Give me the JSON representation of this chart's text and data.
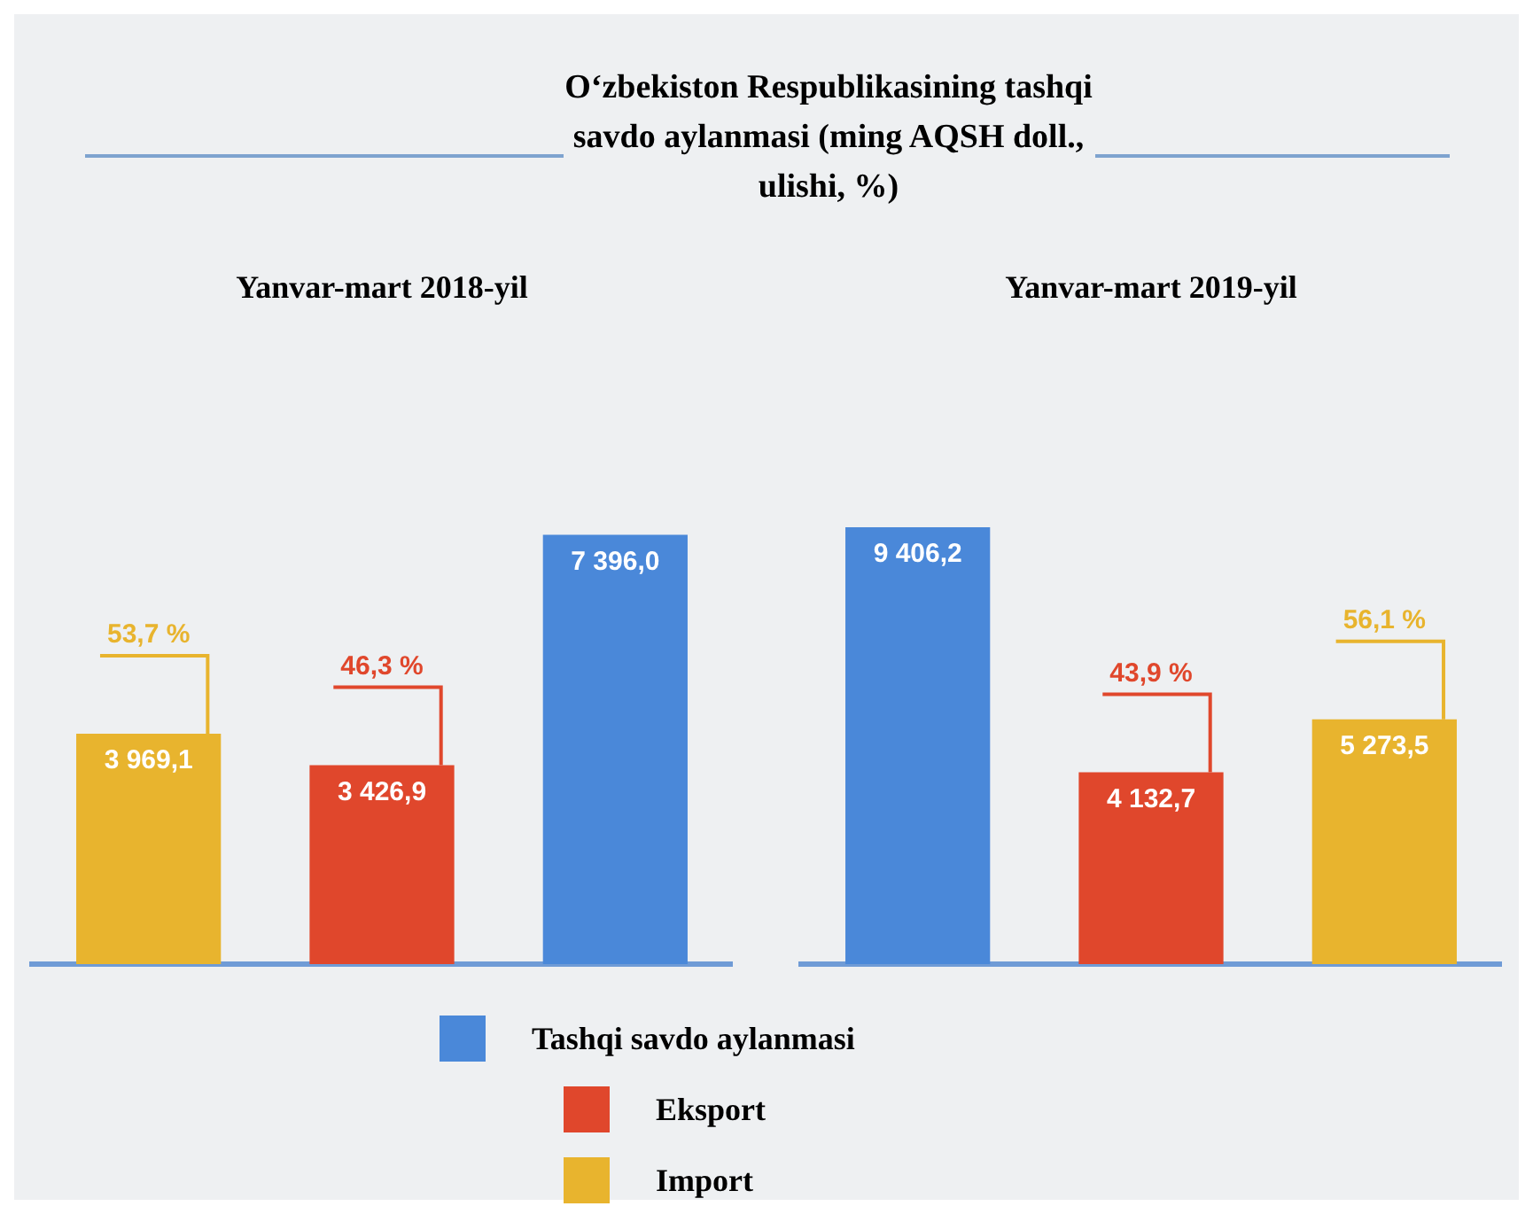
{
  "chart_data": [
    {
      "type": "bar",
      "title": "O‘zbekiston Respublikasining tashqi savdo aylanmasi (ming AQSH doll., ulishi, %)",
      "subtitle": "Yanvar-mart 2018-yil",
      "categories": [
        null,
        null,
        null
      ],
      "stacked": true,
      "tick_labels": false,
      "series": [
        {
          "color": "#e8b42e",
          "values": [
            3969.1,
            null,
            null
          ],
          "value_labels": [
            "3 969,1",
            null,
            null
          ]
        },
        {
          "color": "#e0472c",
          "values": [
            null,
            3426.9,
            null
          ],
          "value_labels": [
            null,
            "3 426,9",
            null
          ]
        },
        {
          "color": "#4a88d9",
          "values": [
            null,
            null,
            7396.0
          ],
          "value_labels": [
            null,
            null,
            "7 396,0"
          ]
        }
      ],
      "annotations": [
        "53,7 %",
        "46,3 %"
      ]
    },
    {
      "type": "bar",
      "subtitle": "Yanvar-mart 2019-yil",
      "categories": [
        null,
        null,
        null
      ],
      "stacked": true,
      "tick_labels": false,
      "legend": "bottom",
      "series": [
        {
          "name": "Tashqi savdo aylanmasi",
          "color": "#4a88d9",
          "values": [
            9406.2,
            null,
            null
          ],
          "value_labels": [
            "9 406,2",
            null,
            null
          ]
        },
        {
          "name": "Eksport",
          "color": "#e0472c",
          "values": [
            null,
            4132.7,
            null
          ],
          "value_labels": [
            null,
            "4 132,7",
            null
          ]
        },
        {
          "name": "Import",
          "color": "#e8b42e",
          "values": [
            null,
            null,
            5273.5
          ],
          "value_labels": [
            null,
            null,
            "5 273,5"
          ]
        }
      ],
      "annotations": [
        "43,9 %",
        "56,1 %"
      ]
    }
  ]
}
